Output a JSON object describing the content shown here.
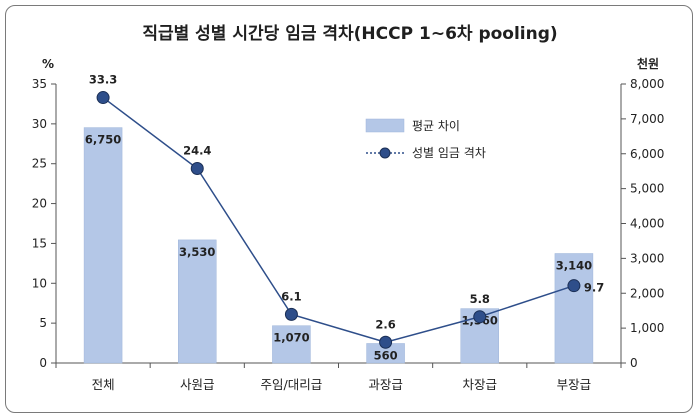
{
  "chart_data": {
    "type": "bar+line",
    "title": "직급별 성별 시간당 임금 격차(HCCP 1~6차 pooling)",
    "categories": [
      "전체",
      "사원급",
      "주임/대리급",
      "과장급",
      "차장급",
      "부장급"
    ],
    "series": [
      {
        "name": "평균 차이",
        "type": "bar",
        "axis": "right",
        "values": [
          6750,
          3530,
          1070,
          560,
          1560,
          3140
        ],
        "labels": [
          "6,750",
          "3,530",
          "1,070",
          "560",
          "1,560",
          "3,140"
        ],
        "color": "#b4c7e7"
      },
      {
        "name": "성별 임금 격차",
        "type": "line",
        "axis": "left",
        "values": [
          33.3,
          24.4,
          6.1,
          2.6,
          5.8,
          9.7
        ],
        "labels": [
          "33.3",
          "24.4",
          "6.1",
          "2.6",
          "5.8",
          "9.7"
        ],
        "color": "#2e4e8a"
      }
    ],
    "y_left": {
      "unit": "%",
      "ylim": [
        0,
        35
      ],
      "ticks": [
        0,
        5,
        10,
        15,
        20,
        25,
        30,
        35
      ],
      "tick_labels": [
        "0",
        "5",
        "10",
        "15",
        "20",
        "25",
        "30",
        "35"
      ]
    },
    "y_right": {
      "unit": "천원",
      "ylim": [
        0,
        8000
      ],
      "ticks": [
        0,
        1000,
        2000,
        3000,
        4000,
        5000,
        6000,
        7000,
        8000
      ],
      "tick_labels": [
        "0",
        "1,000",
        "2,000",
        "3,000",
        "4,000",
        "5,000",
        "6,000",
        "7,000",
        "8,000"
      ]
    },
    "legend_position": "upper-middle",
    "grid": false
  }
}
